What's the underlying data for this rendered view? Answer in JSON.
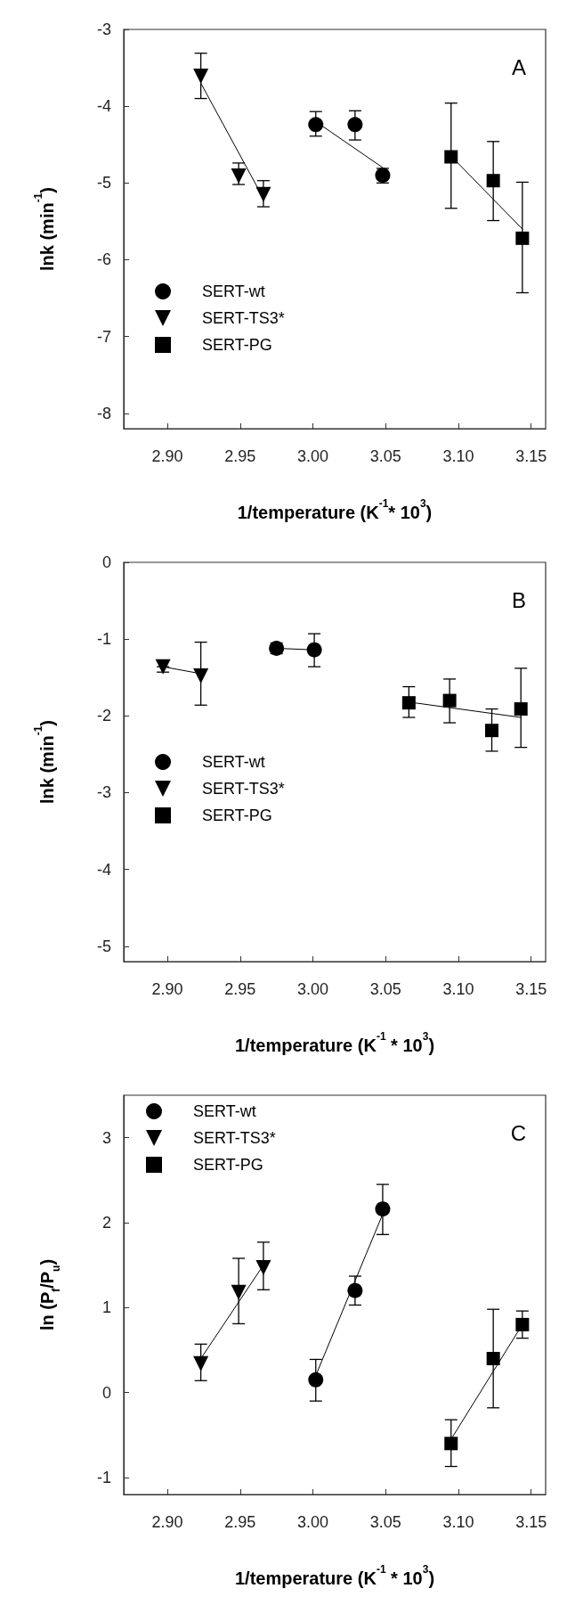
{
  "chart_data": [
    {
      "type": "scatter",
      "annotations": [
        "A"
      ],
      "xlabel": "1/temperature (K$^{-1}$* 10$^{3}$)",
      "ylabel": "lnk (min$^{-1}$)",
      "xlim": [
        2.87,
        3.16
      ],
      "ylim": [
        -8.2,
        -3
      ],
      "xticks": [
        {
          "value": 2.9,
          "label": "2.90"
        },
        {
          "value": 2.95,
          "label": "2.95"
        },
        {
          "value": 3.0,
          "label": "3.00"
        },
        {
          "value": 3.05,
          "label": "3.05"
        },
        {
          "value": 3.1,
          "label": "3.10"
        },
        {
          "value": 3.15,
          "label": "3.15"
        }
      ],
      "yticks": [
        -8,
        -7,
        -6,
        -5,
        -4,
        -3
      ],
      "legend": "bottom left",
      "grid": false,
      "series": [
        {
          "name": "SERT-wt",
          "color": "#000000",
          "marker": "circle",
          "x": [
            3.002,
            3.029,
            3.048
          ],
          "values": [
            -4.24,
            -4.24,
            -4.9
          ],
          "errors": [
            [
              -4.39,
              -4.07
            ],
            [
              -4.44,
              -4.06
            ],
            [
              -5.0,
              -4.81
            ]
          ]
        },
        {
          "name": "SERT-TS3*",
          "color": "#000000",
          "marker": "triangle",
          "x": [
            2.923,
            2.949,
            2.966
          ],
          "values": [
            -3.61,
            -4.91,
            -5.15
          ],
          "errors": [
            [
              -3.9,
              -3.31
            ],
            [
              -5.02,
              -4.74
            ],
            [
              -5.31,
              -4.97
            ]
          ]
        },
        {
          "name": "SERT-PG",
          "color": "#000000",
          "marker": "square",
          "x": [
            3.095,
            3.124,
            3.144
          ],
          "values": [
            -4.66,
            -4.97,
            -5.72
          ],
          "errors": [
            [
              -5.33,
              -3.96
            ],
            [
              -5.49,
              -4.46
            ],
            [
              -6.43,
              -4.99
            ]
          ]
        },
        {
          "type": "line",
          "color": "#000000",
          "marker": "none",
          "x": [
            3.002,
            3.048
          ],
          "values": [
            -4.2,
            -4.8
          ]
        },
        {
          "type": "line",
          "color": "#000000",
          "marker": "none",
          "x": [
            2.923,
            2.966
          ],
          "values": [
            -3.7,
            -5.2
          ]
        },
        {
          "type": "line",
          "color": "#000000",
          "marker": "none",
          "x": [
            3.095,
            3.144
          ],
          "values": [
            -4.65,
            -5.6
          ]
        }
      ]
    },
    {
      "type": "scatter",
      "annotations": [
        "B"
      ],
      "xlabel": "1/temperature (K$^{-1}$ * 10$^{3}$)",
      "ylabel": "lnk (min$^{-1}$)",
      "xlim": [
        2.87,
        3.16
      ],
      "ylim": [
        -5.2,
        0
      ],
      "xticks": [
        {
          "value": 2.9,
          "label": "2.90"
        },
        {
          "value": 2.95,
          "label": "2.95"
        },
        {
          "value": 3.0,
          "label": "3.00"
        },
        {
          "value": 3.05,
          "label": "3.05"
        },
        {
          "value": 3.1,
          "label": "3.10"
        },
        {
          "value": 3.15,
          "label": "3.15"
        }
      ],
      "yticks": [
        -5,
        -4,
        -3,
        -2,
        -1,
        0
      ],
      "legend": "left",
      "grid": false,
      "series": [
        {
          "name": "SERT-wt",
          "color": "#000000",
          "marker": "circle",
          "x": [
            2.975,
            3.001
          ],
          "values": [
            -1.12,
            -1.14
          ],
          "errors": [
            [
              -1.19,
              -1.05
            ],
            [
              -1.36,
              -0.93
            ]
          ]
        },
        {
          "name": "SERT-TS3*",
          "color": "#000000",
          "marker": "triangle",
          "x": [
            2.897,
            2.923
          ],
          "values": [
            -1.36,
            -1.48
          ],
          "errors": [
            [
              -1.43,
              -1.36
            ],
            [
              -1.86,
              -1.04
            ]
          ]
        },
        {
          "name": "SERT-PG",
          "color": "#000000",
          "marker": "square",
          "x": [
            3.066,
            3.094,
            3.123,
            3.143
          ],
          "values": [
            -1.83,
            -1.8,
            -2.19,
            -1.91
          ],
          "errors": [
            [
              -2.02,
              -1.62
            ],
            [
              -2.09,
              -1.52
            ],
            [
              -2.46,
              -1.91
            ],
            [
              -2.41,
              -1.38
            ]
          ]
        },
        {
          "type": "line",
          "color": "#000000",
          "marker": "none",
          "x": [
            2.975,
            3.001
          ],
          "values": [
            -1.12,
            -1.14
          ]
        },
        {
          "type": "line",
          "color": "#000000",
          "marker": "none",
          "x": [
            2.897,
            2.923
          ],
          "values": [
            -1.36,
            -1.45
          ]
        },
        {
          "type": "line",
          "color": "#000000",
          "marker": "none",
          "x": [
            3.066,
            3.143
          ],
          "values": [
            -1.82,
            -2.02
          ]
        }
      ]
    },
    {
      "type": "scatter",
      "annotations": [
        "C"
      ],
      "xlabel": "1/temperature (K$^{-1}$ * 10$^{3}$)",
      "ylabel": "ln (P$_{f}$/P$_{u}$)",
      "xlim": [
        2.87,
        3.16
      ],
      "ylim": [
        -1.2,
        3.5
      ],
      "xticks": [
        {
          "value": 2.9,
          "label": "2.90"
        },
        {
          "value": 2.95,
          "label": "2.95"
        },
        {
          "value": 3.0,
          "label": "3.00"
        },
        {
          "value": 3.05,
          "label": "3.05"
        },
        {
          "value": 3.1,
          "label": "3.10"
        },
        {
          "value": 3.15,
          "label": "3.15"
        }
      ],
      "yticks": [
        -1,
        0,
        1,
        2,
        3
      ],
      "legend": "top left",
      "grid": false,
      "series": [
        {
          "name": "SERT-wt",
          "color": "#000000",
          "marker": "circle",
          "x": [
            3.002,
            3.029,
            3.048
          ],
          "values": [
            0.15,
            1.2,
            2.16
          ],
          "errors": [
            [
              -0.1,
              0.39
            ],
            [
              1.03,
              1.37
            ],
            [
              1.86,
              2.45
            ]
          ]
        },
        {
          "name": "SERT-TS3*",
          "color": "#000000",
          "marker": "triangle",
          "x": [
            2.923,
            2.949,
            2.966
          ],
          "values": [
            0.34,
            1.18,
            1.47
          ],
          "errors": [
            [
              0.14,
              0.57
            ],
            [
              0.81,
              1.58
            ],
            [
              1.21,
              1.77
            ]
          ]
        },
        {
          "name": "SERT-PG",
          "color": "#000000",
          "marker": "square",
          "x": [
            3.095,
            3.124,
            3.144
          ],
          "values": [
            -0.6,
            0.4,
            0.8
          ],
          "errors": [
            [
              -0.87,
              -0.32
            ],
            [
              -0.18,
              0.98
            ],
            [
              0.64,
              0.96
            ]
          ]
        },
        {
          "type": "line",
          "color": "#000000",
          "marker": "none",
          "x": [
            3.002,
            3.048
          ],
          "values": [
            0.2,
            2.1
          ]
        },
        {
          "type": "line",
          "color": "#000000",
          "marker": "none",
          "x": [
            2.923,
            2.966
          ],
          "values": [
            0.4,
            1.5
          ]
        },
        {
          "type": "line",
          "color": "#000000",
          "marker": "none",
          "x": [
            3.095,
            3.144
          ],
          "values": [
            -0.55,
            0.8
          ]
        }
      ]
    }
  ]
}
